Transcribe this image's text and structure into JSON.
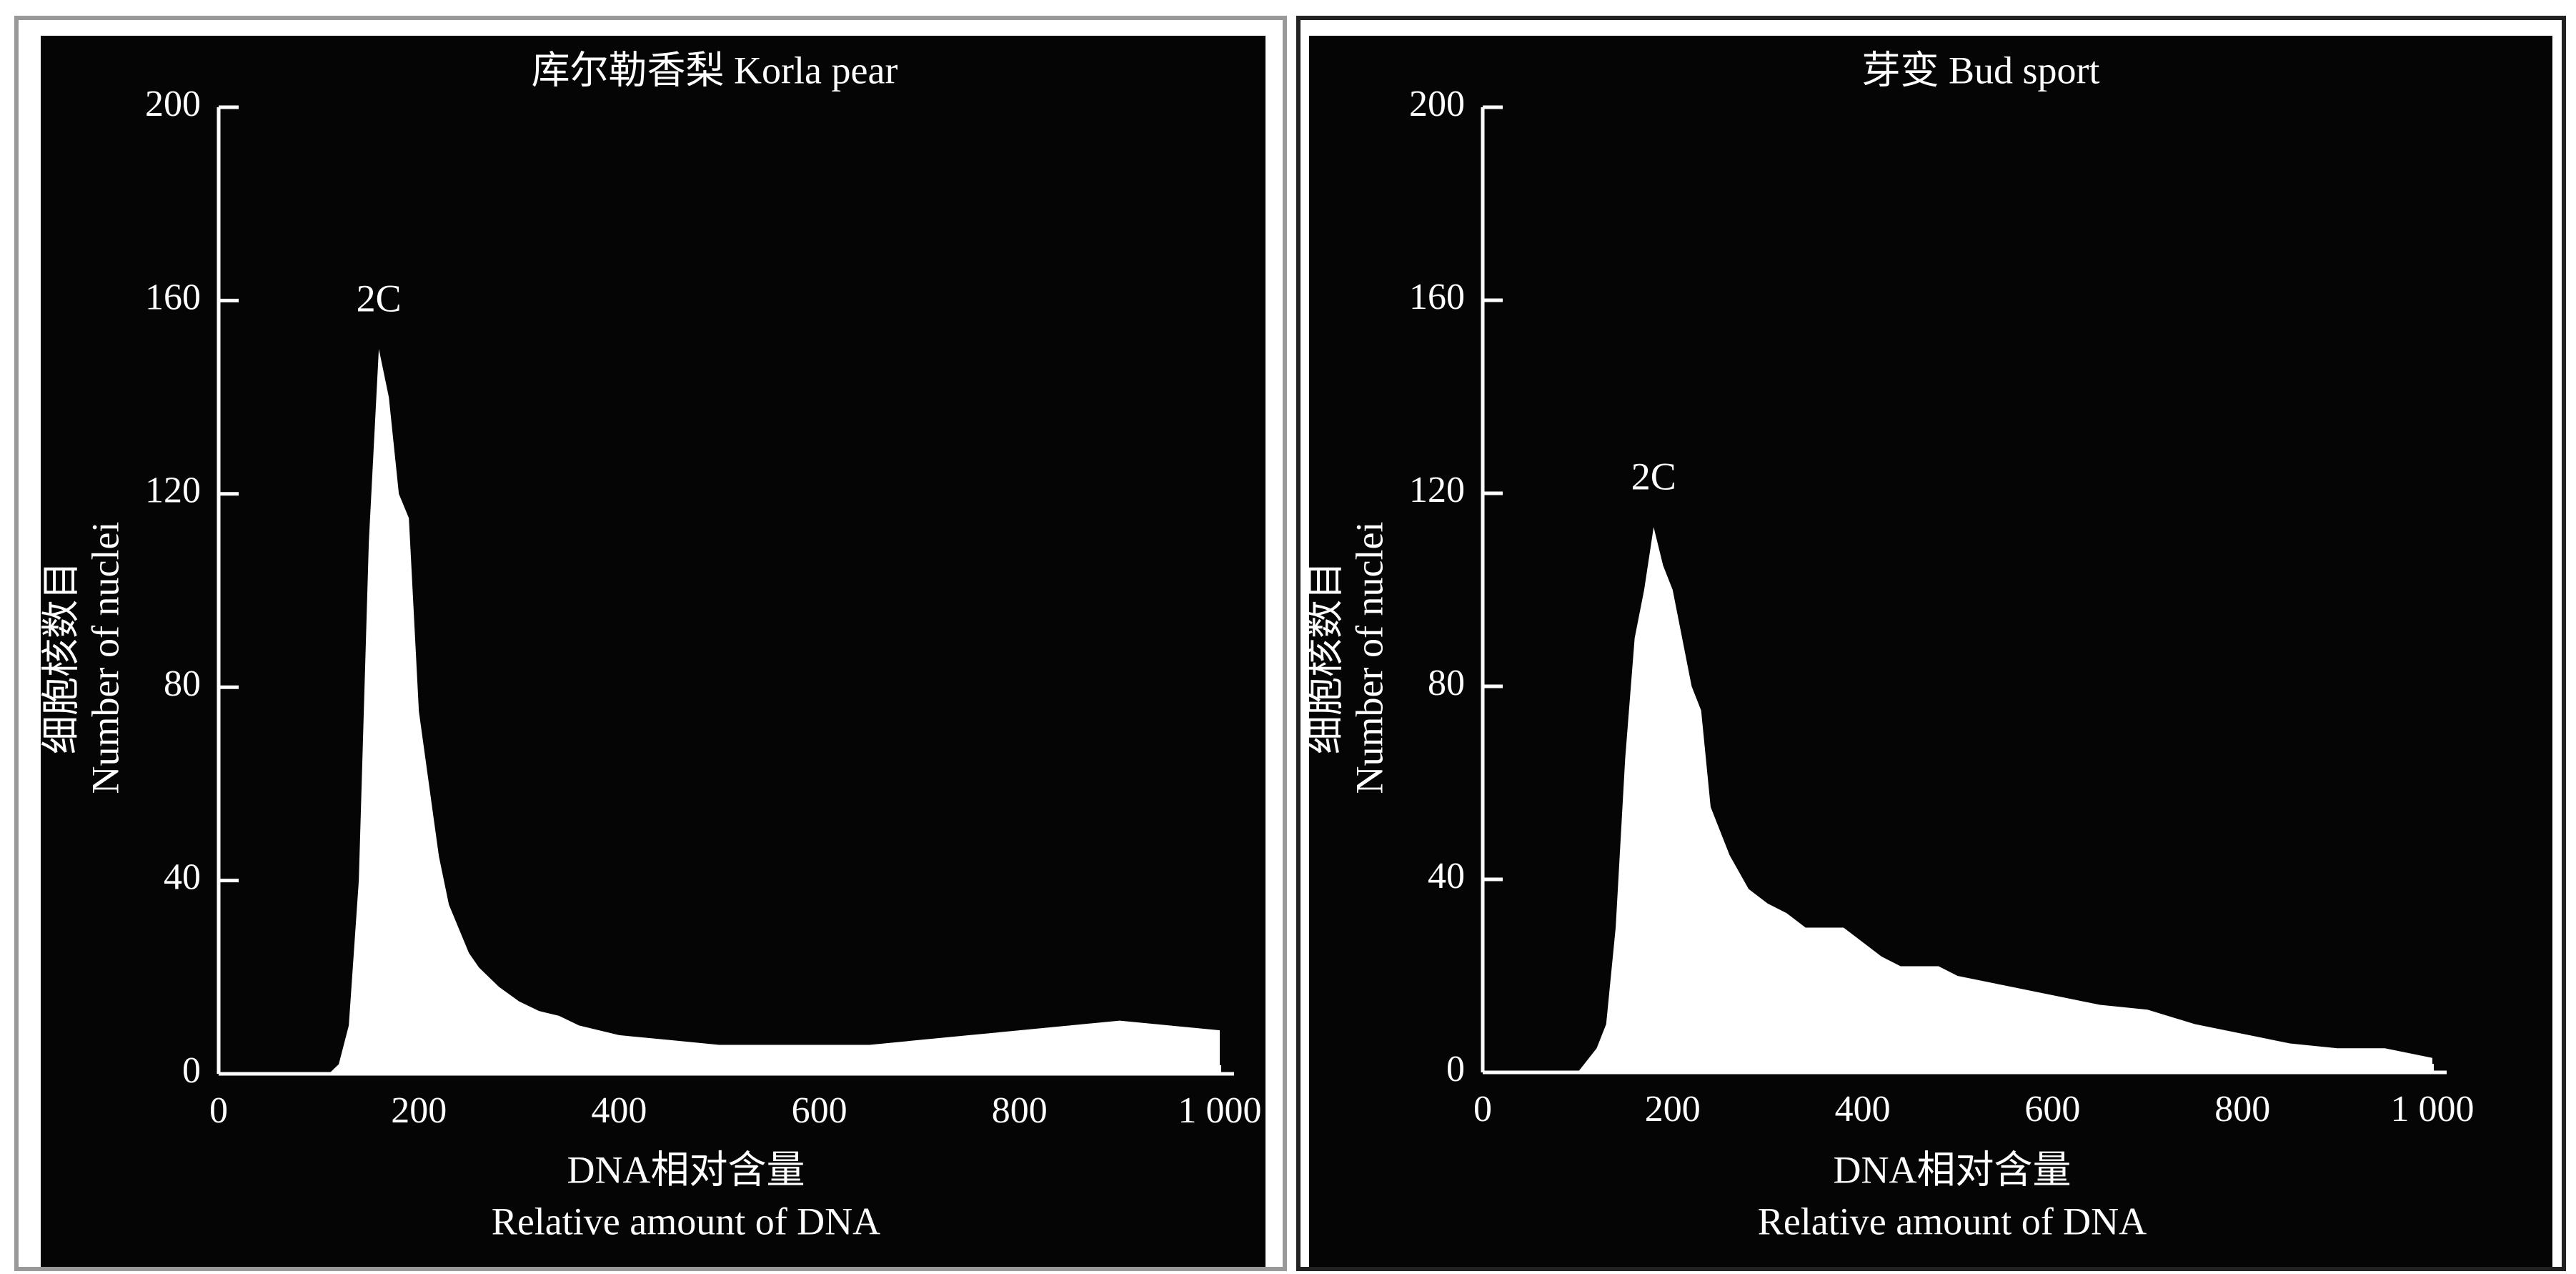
{
  "chart_data": [
    {
      "type": "area",
      "title": "库尔勒香梨 Korla pear",
      "x_label": [
        "DNA相对含量",
        "Relative amount of DNA"
      ],
      "y_label": [
        "细胞核数目",
        "Number of nuclei"
      ],
      "annotation": "2C",
      "x": [
        0,
        110,
        120,
        130,
        140,
        150,
        160,
        170,
        180,
        190,
        200,
        210,
        220,
        230,
        240,
        250,
        260,
        280,
        300,
        320,
        340,
        360,
        380,
        400,
        450,
        500,
        550,
        600,
        650,
        700,
        750,
        800,
        850,
        900,
        950,
        1000
      ],
      "values": [
        0,
        0,
        2,
        10,
        40,
        110,
        150,
        140,
        120,
        115,
        75,
        60,
        45,
        35,
        30,
        25,
        22,
        18,
        15,
        13,
        12,
        10,
        9,
        8,
        7,
        6,
        6,
        6,
        6,
        7,
        8,
        9,
        10,
        11,
        10,
        9
      ],
      "color": "#ffffff",
      "xlim": [
        0,
        1000
      ],
      "xticks": [
        0,
        200,
        400,
        600,
        800,
        {
          "value": 1000,
          "label": "1 000"
        }
      ],
      "ylim": [
        0,
        200
      ],
      "yticks": [
        0,
        40,
        80,
        120,
        160,
        200
      ]
    },
    {
      "type": "area",
      "title": "芽变 Bud sport",
      "x_label": [
        "DNA相对含量",
        "Relative amount of DNA"
      ],
      "y_label": [
        "细胞核数目",
        "Number of nuclei"
      ],
      "annotation": "2C",
      "x": [
        0,
        100,
        120,
        130,
        140,
        150,
        160,
        170,
        180,
        190,
        200,
        210,
        220,
        230,
        240,
        260,
        280,
        300,
        320,
        340,
        360,
        380,
        400,
        420,
        440,
        460,
        480,
        500,
        550,
        600,
        650,
        700,
        750,
        800,
        850,
        900,
        950,
        1000
      ],
      "values": [
        0,
        0,
        5,
        10,
        30,
        65,
        90,
        100,
        113,
        105,
        100,
        90,
        80,
        75,
        55,
        45,
        38,
        35,
        33,
        30,
        30,
        30,
        27,
        24,
        22,
        22,
        22,
        20,
        18,
        16,
        14,
        13,
        10,
        8,
        6,
        5,
        5,
        3
      ],
      "color": "#ffffff",
      "xlim": [
        0,
        1000
      ],
      "xticks": [
        0,
        200,
        400,
        600,
        800,
        {
          "value": 1000,
          "label": "1 000"
        }
      ],
      "ylim": [
        0,
        200
      ],
      "yticks": [
        0,
        40,
        80,
        120,
        160,
        200
      ]
    }
  ]
}
